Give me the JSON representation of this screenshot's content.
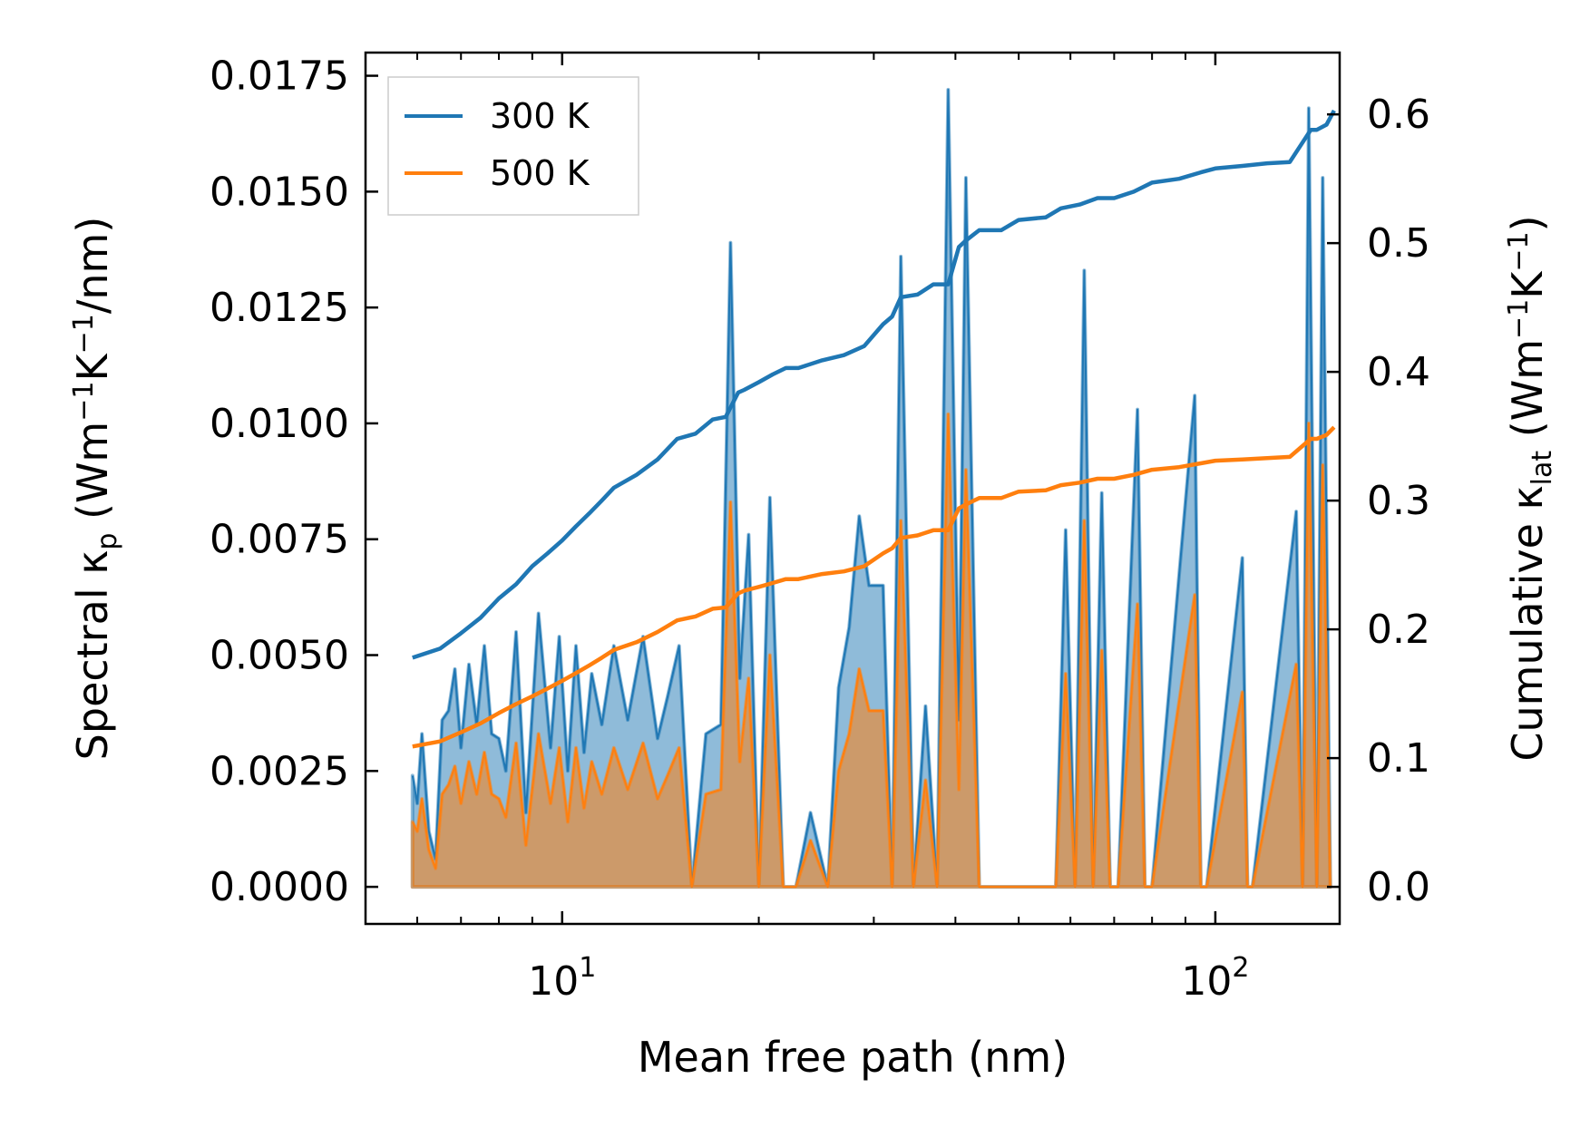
{
  "chart_data": {
    "type": "line",
    "xscale": "log",
    "xlabel": "Mean free path (nm)",
    "xlim": [
      5.0,
      155.0
    ],
    "xticks": [
      {
        "value": 10,
        "base": "10",
        "exp": "1"
      },
      {
        "value": 100,
        "base": "10",
        "exp": "2"
      }
    ],
    "left_axis": {
      "label_parts": [
        "Spectral κ",
        "p",
        " (Wm",
        "−1",
        "K",
        "−1",
        "/nm)"
      ],
      "ylim": [
        -0.0008,
        0.018
      ],
      "ticks": [
        "0.0000",
        "0.0025",
        "0.0050",
        "0.0075",
        "0.0100",
        "0.0125",
        "0.0150",
        "0.0175"
      ],
      "tick_values": [
        0.0,
        0.0025,
        0.005,
        0.0075,
        0.01,
        0.0125,
        0.015,
        0.0175
      ]
    },
    "right_axis": {
      "label_parts": [
        "Cumulative κ",
        "lat",
        " (Wm",
        "−1",
        "K",
        "−1",
        ")"
      ],
      "ylim": [
        -0.0288,
        0.648
      ],
      "ticks": [
        "0.0",
        "0.1",
        "0.2",
        "0.3",
        "0.4",
        "0.5",
        "0.6"
      ],
      "tick_values": [
        0.0,
        0.1,
        0.2,
        0.3,
        0.4,
        0.5,
        0.6
      ]
    },
    "legend": {
      "position": "upper-left",
      "entries": [
        {
          "label": "300 K",
          "color": "#1f77b4"
        },
        {
          "label": "500 K",
          "color": "#ff7f0e"
        }
      ]
    },
    "series": [
      {
        "name": "300 K",
        "color": "#1f77b4",
        "spectral": {
          "x": [
            5.9,
            6.0,
            6.1,
            6.25,
            6.4,
            6.55,
            6.7,
            6.85,
            7.0,
            7.2,
            7.4,
            7.6,
            7.8,
            8.0,
            8.2,
            8.5,
            8.8,
            9.2,
            9.6,
            9.9,
            10.2,
            10.5,
            10.8,
            11.1,
            11.5,
            12.0,
            12.6,
            13.3,
            14.0,
            14.5,
            15.1,
            15.8,
            16.6,
            17.5,
            18.1,
            18.7,
            19.3,
            20.0,
            20.8,
            21.8,
            22.8,
            24.0,
            25.5,
            26.5,
            27.5,
            28.5,
            29.5,
            31.0,
            32.0,
            33.0,
            34.5,
            36.0,
            37.5,
            39.0,
            40.5,
            41.5,
            43.5,
            45.0,
            46.5,
            47.5,
            48.5,
            57.0,
            59.0,
            61.0,
            63.0,
            65.0,
            67.0,
            69.0,
            71.0,
            76.0,
            78.0,
            80.0,
            93.0,
            95.0,
            97.0,
            110.0,
            112.0,
            114.0,
            133.0,
            136.0,
            139.0,
            143.0,
            146.0,
            150.0
          ],
          "y": [
            0.0024,
            0.0018,
            0.0033,
            0.0012,
            0.0006,
            0.0036,
            0.0038,
            0.0047,
            0.003,
            0.0048,
            0.0035,
            0.0052,
            0.0033,
            0.0032,
            0.0025,
            0.0055,
            0.0016,
            0.0059,
            0.003,
            0.0054,
            0.0025,
            0.0052,
            0.0029,
            0.0046,
            0.0035,
            0.0052,
            0.0036,
            0.0054,
            0.0032,
            0.0041,
            0.0052,
            0.0,
            0.0033,
            0.0035,
            0.0139,
            0.0045,
            0.0076,
            0.0,
            0.0084,
            0.0,
            0.0,
            0.0016,
            0.0,
            0.0043,
            0.0056,
            0.008,
            0.0065,
            0.0065,
            0.0,
            0.0136,
            0.0,
            0.0039,
            0.0,
            0.0172,
            0.0036,
            0.0153,
            0.0,
            0.0,
            0.0,
            0.0,
            0.0,
            0.0,
            0.0077,
            0.0,
            0.0133,
            0.0,
            0.0085,
            0.0,
            0.0,
            0.0103,
            0.0,
            0.0,
            0.0106,
            0.0,
            0.0,
            0.0071,
            0.0,
            0.0,
            0.0081,
            0.0,
            0.0168,
            0.0,
            0.0153,
            0.0
          ]
        },
        "cumulative": {
          "x": [
            5.9,
            6.5,
            7.0,
            7.5,
            8.0,
            8.5,
            9.0,
            9.5,
            10.0,
            10.5,
            11.0,
            11.5,
            12.0,
            13.0,
            14.0,
            15.0,
            16.0,
            17.0,
            17.8,
            18.6,
            19.0,
            20.0,
            21.0,
            22.0,
            23.0,
            25.0,
            27.0,
            29.0,
            31.0,
            32.0,
            33.0,
            35.0,
            37.0,
            39.0,
            40.5,
            41.5,
            43.5,
            45.0,
            47.0,
            50.0,
            55.0,
            58.0,
            62.0,
            66.0,
            70.0,
            75.0,
            80.0,
            88.0,
            95.0,
            100.0,
            110.0,
            120.0,
            130.0,
            140.0,
            143.0,
            148.0,
            152.0
          ],
          "y": [
            0.178,
            0.185,
            0.197,
            0.209,
            0.224,
            0.235,
            0.249,
            0.259,
            0.269,
            0.28,
            0.29,
            0.3,
            0.31,
            0.32,
            0.332,
            0.348,
            0.352,
            0.363,
            0.365,
            0.384,
            0.386,
            0.392,
            0.398,
            0.403,
            0.403,
            0.409,
            0.413,
            0.42,
            0.437,
            0.443,
            0.458,
            0.46,
            0.468,
            0.468,
            0.497,
            0.502,
            0.51,
            0.51,
            0.51,
            0.518,
            0.52,
            0.527,
            0.53,
            0.535,
            0.535,
            0.54,
            0.547,
            0.55,
            0.555,
            0.558,
            0.56,
            0.562,
            0.563,
            0.588,
            0.588,
            0.592,
            0.603
          ]
        }
      },
      {
        "name": "500 K",
        "color": "#ff7f0e",
        "spectral": {
          "x": [
            5.9,
            6.0,
            6.1,
            6.25,
            6.4,
            6.55,
            6.7,
            6.85,
            7.0,
            7.2,
            7.4,
            7.6,
            7.8,
            8.0,
            8.2,
            8.5,
            8.8,
            9.2,
            9.6,
            9.9,
            10.2,
            10.5,
            10.8,
            11.1,
            11.5,
            12.0,
            12.6,
            13.3,
            14.0,
            14.5,
            15.1,
            15.8,
            16.6,
            17.5,
            18.1,
            18.7,
            19.3,
            20.0,
            20.8,
            21.8,
            22.8,
            24.0,
            25.5,
            26.5,
            27.5,
            28.5,
            29.5,
            31.0,
            32.0,
            33.0,
            34.5,
            36.0,
            37.5,
            39.0,
            40.5,
            41.5,
            43.5,
            45.0,
            46.5,
            47.5,
            48.5,
            57.0,
            59.0,
            61.0,
            63.0,
            65.0,
            67.0,
            69.0,
            71.0,
            76.0,
            78.0,
            80.0,
            93.0,
            95.0,
            97.0,
            110.0,
            112.0,
            114.0,
            133.0,
            136.0,
            139.0,
            143.0,
            146.0,
            150.0
          ],
          "y": [
            0.0014,
            0.0012,
            0.0019,
            0.0008,
            0.0004,
            0.002,
            0.0022,
            0.0026,
            0.0018,
            0.0027,
            0.002,
            0.0029,
            0.002,
            0.0019,
            0.0015,
            0.0031,
            0.0009,
            0.0033,
            0.0018,
            0.003,
            0.0014,
            0.003,
            0.0017,
            0.0027,
            0.002,
            0.003,
            0.0021,
            0.0031,
            0.0019,
            0.0024,
            0.003,
            0.0,
            0.002,
            0.0021,
            0.0083,
            0.0027,
            0.0045,
            0.0,
            0.005,
            0.0,
            0.0,
            0.001,
            0.0,
            0.0025,
            0.0033,
            0.0047,
            0.0038,
            0.0038,
            0.0,
            0.0079,
            0.0,
            0.0023,
            0.0,
            0.0102,
            0.0021,
            0.009,
            0.0,
            0.0,
            0.0,
            0.0,
            0.0,
            0.0,
            0.0046,
            0.0,
            0.0079,
            0.0,
            0.0051,
            0.0,
            0.0,
            0.0061,
            0.0,
            0.0,
            0.0063,
            0.0,
            0.0,
            0.0042,
            0.0,
            0.0,
            0.0048,
            0.0,
            0.01,
            0.0,
            0.0091,
            0.0
          ]
        },
        "cumulative": {
          "x": [
            5.9,
            6.5,
            7.0,
            7.5,
            8.0,
            8.5,
            9.0,
            9.5,
            10.0,
            10.5,
            11.0,
            11.5,
            12.0,
            13.0,
            14.0,
            15.0,
            16.0,
            17.0,
            17.8,
            18.6,
            19.0,
            20.0,
            21.0,
            22.0,
            23.0,
            25.0,
            27.0,
            29.0,
            31.0,
            32.0,
            33.0,
            35.0,
            37.0,
            39.0,
            40.5,
            41.5,
            43.5,
            45.0,
            47.0,
            50.0,
            55.0,
            58.0,
            62.0,
            66.0,
            70.0,
            75.0,
            80.0,
            88.0,
            95.0,
            100.0,
            110.0,
            120.0,
            130.0,
            140.0,
            143.0,
            148.0,
            152.0
          ],
          "y": [
            0.109,
            0.113,
            0.12,
            0.127,
            0.135,
            0.142,
            0.148,
            0.154,
            0.16,
            0.166,
            0.172,
            0.178,
            0.184,
            0.19,
            0.198,
            0.207,
            0.21,
            0.216,
            0.217,
            0.228,
            0.23,
            0.233,
            0.236,
            0.239,
            0.239,
            0.243,
            0.245,
            0.249,
            0.259,
            0.263,
            0.271,
            0.273,
            0.277,
            0.277,
            0.294,
            0.297,
            0.302,
            0.302,
            0.302,
            0.307,
            0.308,
            0.312,
            0.314,
            0.317,
            0.317,
            0.32,
            0.324,
            0.326,
            0.329,
            0.331,
            0.332,
            0.333,
            0.334,
            0.348,
            0.348,
            0.351,
            0.357
          ]
        }
      }
    ]
  }
}
